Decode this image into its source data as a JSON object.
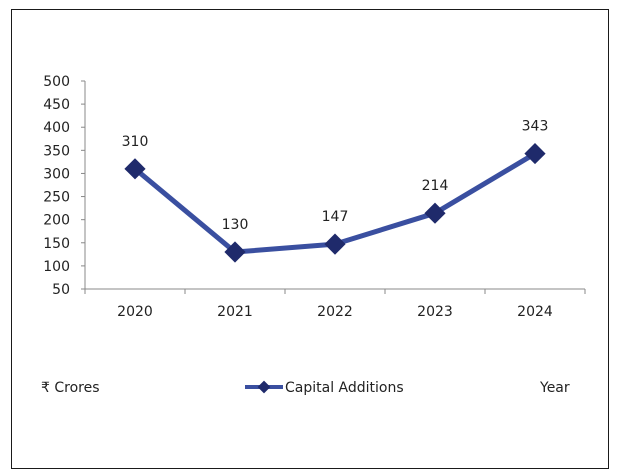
{
  "chart_data": {
    "type": "line",
    "categories": [
      "2020",
      "2021",
      "2022",
      "2023",
      "2024"
    ],
    "series": [
      {
        "name": "Capital Additions",
        "values": [
          310,
          130,
          147,
          214,
          343
        ]
      }
    ],
    "y_ticks": [
      "50",
      "100",
      "150",
      "200",
      "250",
      "300",
      "350",
      "400",
      "450",
      "500"
    ],
    "ylim": [
      50,
      500
    ],
    "data_labels": [
      "310",
      "130",
      "147",
      "214",
      "343"
    ],
    "legend": {
      "left_text": "₹ Crores",
      "series_text": "Capital Additions",
      "right_text": "Year",
      "placement": "bottom"
    },
    "grid": false,
    "colors": {
      "line": "#3a4fa0",
      "marker": "#1f2a6b",
      "axis": "#888888"
    }
  }
}
